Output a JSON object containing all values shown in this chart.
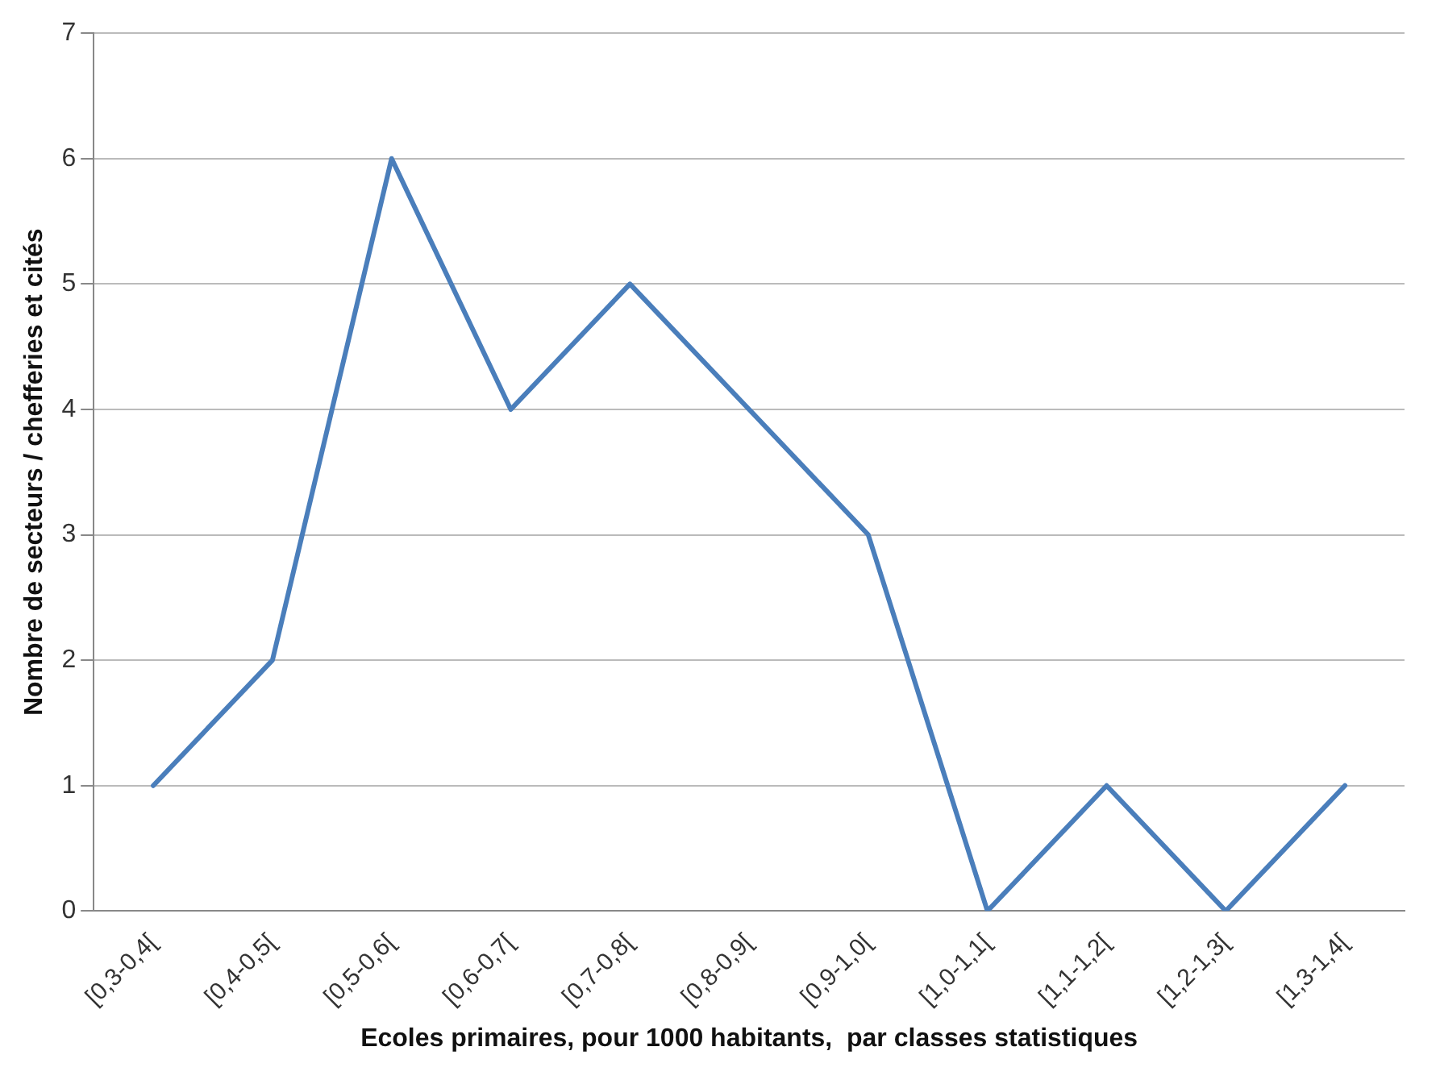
{
  "chart_data": {
    "type": "line",
    "xlabel": "Ecoles primaires, pour 1000 habitants,  par classes statistiques",
    "ylabel": "Nombre de secteurs / chefferies et cités",
    "categories": [
      "[0,3-0,4[",
      "[0,4-0,5[",
      "[0,5-0,6[",
      "[0,6-0,7[",
      "[0,7-0,8[",
      "[0,8-0,9[",
      "[0,9-1,0[",
      "[1,0-1,1[",
      "[1,1-1,2[",
      "[1,2-1,3[",
      "[1,3-1,4["
    ],
    "series": [
      {
        "color": "#4a7ebb",
        "values": [
          1,
          2,
          6,
          4,
          5,
          4,
          3,
          0,
          1,
          0,
          1
        ]
      }
    ],
    "ylim": [
      0,
      7
    ],
    "yticks": [
      0,
      1,
      2,
      3,
      4,
      5,
      6,
      7
    ],
    "grid": "y",
    "legend": false,
    "marker": "none",
    "line_style": "solid"
  }
}
